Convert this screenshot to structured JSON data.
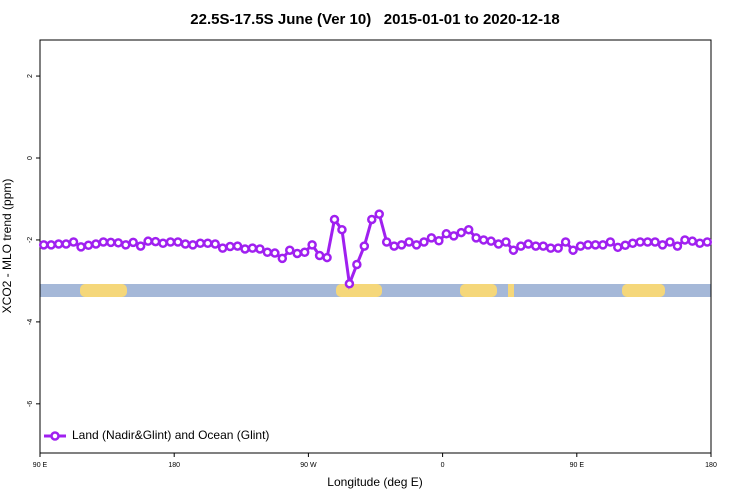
{
  "chart_data": {
    "type": "line",
    "title": "22.5S-17.5S June (Ver 10)   2015-01-01 to 2020-12-18",
    "xlabel": "Longitude (deg E)",
    "ylabel": "XCO2 - MLO trend (ppm)",
    "xlim": [
      90,
      540
    ],
    "ylim": [
      -7.2,
      2.88
    ],
    "xticks": [
      {
        "value": 90,
        "label": "90 E"
      },
      {
        "value": 180,
        "label": "180"
      },
      {
        "value": 270,
        "label": "90 W"
      },
      {
        "value": 360,
        "label": "0"
      },
      {
        "value": 450,
        "label": "90 E"
      },
      {
        "value": 540,
        "label": "180"
      }
    ],
    "yticks": [
      2,
      0,
      -2,
      -4,
      -6
    ],
    "legend": "bottom-left",
    "x": [
      92.5,
      97.5,
      102.5,
      107.5,
      112.5,
      117.5,
      122.5,
      127.5,
      132.5,
      137.5,
      142.5,
      147.5,
      152.5,
      157.5,
      162.5,
      167.5,
      172.5,
      177.5,
      182.5,
      187.5,
      192.5,
      197.5,
      202.5,
      207.5,
      212.5,
      217.5,
      222.5,
      227.5,
      232.5,
      237.5,
      242.5,
      247.5,
      252.5,
      257.5,
      262.5,
      267.5,
      272.5,
      277.5,
      282.5,
      287.5,
      292.5,
      297.5,
      302.5,
      307.5,
      312.5,
      317.5,
      322.5,
      327.5,
      332.5,
      337.5,
      342.5,
      347.5,
      352.5,
      357.5,
      362.5,
      367.5,
      372.5,
      377.5,
      382.5,
      387.5,
      392.5,
      397.5,
      402.5,
      407.5,
      412.5,
      417.5,
      422.5,
      427.5,
      432.5,
      437.5,
      442.5,
      447.5,
      452.5,
      457.5,
      462.5,
      467.5,
      472.5,
      477.5,
      482.5,
      487.5,
      492.5,
      497.5,
      502.5,
      507.5,
      512.5,
      517.5,
      522.5,
      527.5,
      532.5,
      537.5
    ],
    "series": [
      {
        "name": "Land (Nadir&Glint) and Ocean (Glint)",
        "color": "#a020f0",
        "values": [
          -2.12,
          -2.12,
          -2.1,
          -2.1,
          -2.05,
          -2.17,
          -2.13,
          -2.1,
          -2.05,
          -2.06,
          -2.07,
          -2.12,
          -2.06,
          -2.15,
          -2.03,
          -2.04,
          -2.08,
          -2.05,
          -2.05,
          -2.1,
          -2.12,
          -2.08,
          -2.08,
          -2.1,
          -2.2,
          -2.16,
          -2.15,
          -2.22,
          -2.2,
          -2.22,
          -2.3,
          -2.32,
          -2.45,
          -2.25,
          -2.33,
          -2.3,
          -2.12,
          -2.38,
          -2.43,
          -1.5,
          -1.75,
          -3.07,
          -2.6,
          -2.15,
          -1.5,
          -1.37,
          -2.05,
          -2.15,
          -2.12,
          -2.05,
          -2.12,
          -2.05,
          -1.95,
          -2.02,
          -1.85,
          -1.9,
          -1.82,
          -1.75,
          -1.95,
          -2.0,
          -2.03,
          -2.1,
          -2.05,
          -2.25,
          -2.15,
          -2.1,
          -2.15,
          -2.15,
          -2.2,
          -2.2,
          -2.05,
          -2.25,
          -2.15,
          -2.12,
          -2.12,
          -2.12,
          -2.05,
          -2.18,
          -2.13,
          -2.08,
          -2.05,
          -2.05,
          -2.05,
          -2.12,
          -2.05,
          -2.15,
          -2.0,
          -2.03,
          -2.08,
          -2.05
        ]
      }
    ]
  }
}
